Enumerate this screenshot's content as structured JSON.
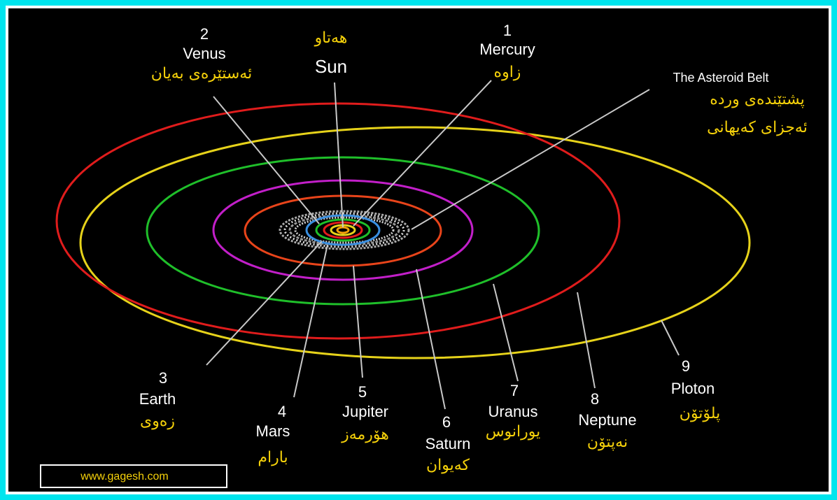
{
  "sun": {
    "name": "Sun",
    "kurdish": "هەتاو"
  },
  "asteroid_belt": {
    "name": "The Asteroid Belt",
    "kurdish_line1": "پشتێندەی وردە",
    "kurdish_line2": "ئەجزای کەیهانی"
  },
  "planets": [
    {
      "number": "1",
      "name": "Mercury",
      "kurdish": "زاوە"
    },
    {
      "number": "2",
      "name": "Venus",
      "kurdish": "ئەستێرەی بەیان"
    },
    {
      "number": "3",
      "name": "Earth",
      "kurdish": "زەوی"
    },
    {
      "number": "4",
      "name": "Mars",
      "kurdish": "بارام"
    },
    {
      "number": "5",
      "name": "Jupiter",
      "kurdish": "هۆرمەز"
    },
    {
      "number": "6",
      "name": "Saturn",
      "kurdish": "کەیوان"
    },
    {
      "number": "7",
      "name": "Uranus",
      "kurdish": "یورانوس"
    },
    {
      "number": "8",
      "name": "Neptune",
      "kurdish": "نەپتۆن"
    },
    {
      "number": "9",
      "name": "Ploton",
      "kurdish": "پلۆتۆن"
    }
  ],
  "website": "www.gagesh.com"
}
